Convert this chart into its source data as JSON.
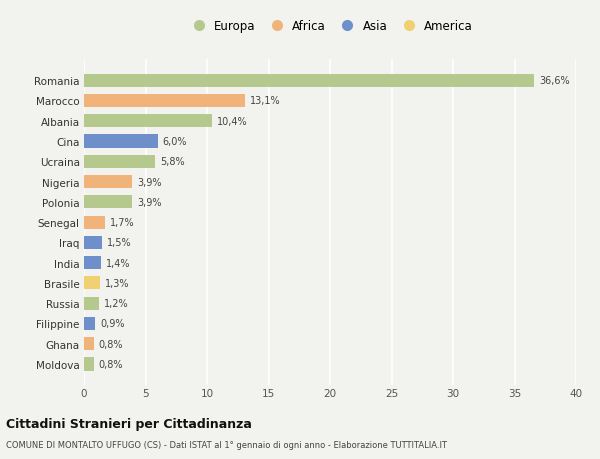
{
  "countries": [
    "Romania",
    "Marocco",
    "Albania",
    "Cina",
    "Ucraina",
    "Nigeria",
    "Polonia",
    "Senegal",
    "Iraq",
    "India",
    "Brasile",
    "Russia",
    "Filippine",
    "Ghana",
    "Moldova"
  ],
  "values": [
    36.6,
    13.1,
    10.4,
    6.0,
    5.8,
    3.9,
    3.9,
    1.7,
    1.5,
    1.4,
    1.3,
    1.2,
    0.9,
    0.8,
    0.8
  ],
  "labels": [
    "36,6%",
    "13,1%",
    "10,4%",
    "6,0%",
    "5,8%",
    "3,9%",
    "3,9%",
    "1,7%",
    "1,5%",
    "1,4%",
    "1,3%",
    "1,2%",
    "0,9%",
    "0,8%",
    "0,8%"
  ],
  "continents": [
    "Europa",
    "Africa",
    "Europa",
    "Asia",
    "Europa",
    "Africa",
    "Europa",
    "Africa",
    "Asia",
    "Asia",
    "America",
    "Europa",
    "Asia",
    "Africa",
    "Europa"
  ],
  "colors": {
    "Europa": "#b5c98e",
    "Africa": "#f0b47a",
    "Asia": "#6e8fc9",
    "America": "#f0d070"
  },
  "legend_order": [
    "Europa",
    "Africa",
    "Asia",
    "America"
  ],
  "legend_colors": [
    "#b5c98e",
    "#f0b47a",
    "#6e8fc9",
    "#f0d070"
  ],
  "xlim": [
    0,
    40
  ],
  "xticks": [
    0,
    5,
    10,
    15,
    20,
    25,
    30,
    35,
    40
  ],
  "title": "Cittadini Stranieri per Cittadinanza",
  "subtitle": "COMUNE DI MONTALTO UFFUGO (CS) - Dati ISTAT al 1° gennaio di ogni anno - Elaborazione TUTTITALIA.IT",
  "background_color": "#f2f2ee",
  "grid_color": "#ffffff",
  "bar_height": 0.65
}
